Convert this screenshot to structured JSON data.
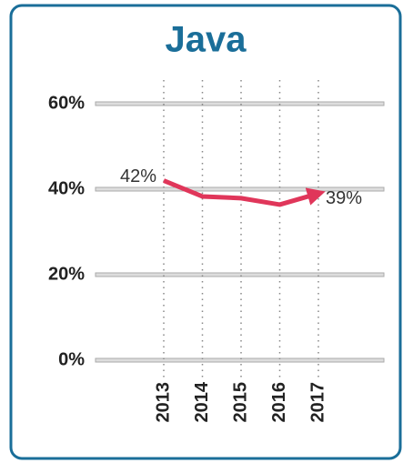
{
  "chart_data": {
    "type": "line",
    "title": "Java",
    "categories": [
      "2013",
      "2014",
      "2015",
      "2016",
      "2017"
    ],
    "series": [
      {
        "name": "Java",
        "color": "#e0365a",
        "values": [
          42,
          38.3,
          37.9,
          36.4,
          39
        ],
        "value_labels": [
          "42%",
          null,
          null,
          null,
          "39%"
        ]
      }
    ],
    "ylim": [
      0,
      60
    ],
    "yticks": [
      {
        "value": 0,
        "label": "0%"
      },
      {
        "value": 20,
        "label": "20%"
      },
      {
        "value": 40,
        "label": "40%"
      },
      {
        "value": 60,
        "label": "60%"
      }
    ],
    "grid": true
  }
}
